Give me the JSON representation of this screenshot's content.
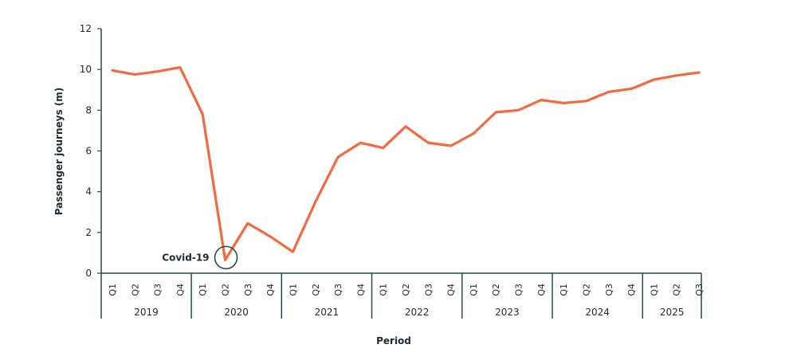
{
  "chart_data": {
    "type": "line",
    "title": "",
    "xlabel": "Period",
    "ylabel": "Passenger journeys (m)",
    "ylim": [
      0,
      12
    ],
    "yticks": [
      0,
      2,
      4,
      6,
      8,
      10,
      12
    ],
    "grid": false,
    "legend": "none",
    "years": [
      {
        "label": "2019",
        "quarters": [
          "Q1",
          "Q2",
          "Q3",
          "Q4"
        ]
      },
      {
        "label": "2020",
        "quarters": [
          "Q1",
          "Q2",
          "Q3",
          "Q4"
        ]
      },
      {
        "label": "2021",
        "quarters": [
          "Q1",
          "Q2",
          "Q3",
          "Q4"
        ]
      },
      {
        "label": "2022",
        "quarters": [
          "Q1",
          "Q2",
          "Q3",
          "Q4"
        ]
      },
      {
        "label": "2023",
        "quarters": [
          "Q1",
          "Q2",
          "Q3",
          "Q4"
        ]
      },
      {
        "label": "2024",
        "quarters": [
          "Q1",
          "Q2",
          "Q3",
          "Q4"
        ]
      },
      {
        "label": "2025",
        "quarters": [
          "Q1",
          "Q2",
          "Q3"
        ]
      }
    ],
    "series": [
      {
        "color": "#f26a3d",
        "values": [
          9.95,
          9.75,
          9.9,
          10.1,
          7.8,
          0.65,
          2.45,
          1.8,
          1.05,
          3.5,
          5.7,
          6.4,
          6.15,
          7.2,
          6.4,
          6.25,
          6.85,
          7.9,
          8.0,
          8.5,
          8.35,
          8.45,
          8.9,
          9.05,
          9.5,
          9.7,
          9.85
        ]
      }
    ],
    "annotation": {
      "label": "Covid-19",
      "index": 5,
      "color": "#1f4f4f"
    },
    "axis_color": "#1f4f4f"
  }
}
